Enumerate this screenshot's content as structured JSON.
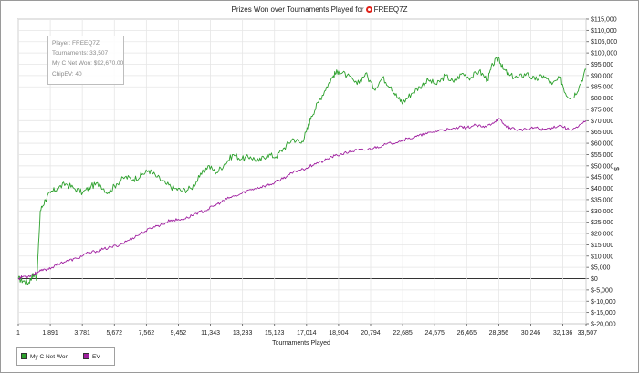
{
  "chart_data": {
    "type": "line",
    "title_prefix": "Prizes Won over Tournaments Played for",
    "player": "FREEQ7Z",
    "xlabel": "Tournaments Played",
    "ylabel": "$",
    "x_ticks": [
      "1",
      "1,891",
      "3,781",
      "5,672",
      "7,562",
      "9,452",
      "11,343",
      "13,233",
      "15,123",
      "17,014",
      "18,904",
      "20,794",
      "22,685",
      "24,575",
      "26,465",
      "28,356",
      "30,246",
      "32,136",
      "33,507"
    ],
    "x_tick_values": [
      1,
      1891,
      3781,
      5672,
      7562,
      9452,
      11343,
      13233,
      15123,
      17014,
      18904,
      20794,
      22685,
      24575,
      26465,
      28356,
      30246,
      32136,
      33507
    ],
    "xlim": [
      1,
      33507
    ],
    "y_ticks": [
      "$-20,000",
      "$-15,000",
      "$-10,000",
      "$-5,000",
      "$0",
      "$5,000",
      "$10,000",
      "$15,000",
      "$20,000",
      "$25,000",
      "$30,000",
      "$35,000",
      "$40,000",
      "$45,000",
      "$50,000",
      "$55,000",
      "$60,000",
      "$65,000",
      "$70,000",
      "$75,000",
      "$80,000",
      "$85,000",
      "$90,000",
      "$95,000",
      "$100,000",
      "$105,000",
      "$110,000",
      "$115,000"
    ],
    "y_tick_values": [
      -20000,
      -15000,
      -10000,
      -5000,
      0,
      5000,
      10000,
      15000,
      20000,
      25000,
      30000,
      35000,
      40000,
      45000,
      50000,
      55000,
      60000,
      65000,
      70000,
      75000,
      80000,
      85000,
      90000,
      95000,
      100000,
      105000,
      110000,
      115000
    ],
    "ylim": [
      -20000,
      115000
    ],
    "grid": true,
    "legend_position": "bottom-left",
    "infobox": {
      "player": "Player: FREEQ7Z",
      "tournaments": "Tournaments: 33,507",
      "net_won": "My C Net Won: $92,670.00",
      "chipev": "ChipEV: 40"
    },
    "series": [
      {
        "name": "My C Net Won",
        "color": "#2ca02c",
        "x": [
          1,
          300,
          600,
          800,
          1000,
          1100,
          1300,
          1600,
          1900,
          2300,
          2800,
          3300,
          3800,
          4300,
          4800,
          5300,
          5800,
          6300,
          6800,
          7300,
          7700,
          8200,
          8700,
          9200,
          9700,
          10200,
          10700,
          11200,
          11700,
          12200,
          12700,
          13200,
          13700,
          14200,
          14700,
          15200,
          15700,
          16200,
          16700,
          17000,
          17300,
          17700,
          18200,
          18600,
          18904,
          19400,
          20000,
          20500,
          21000,
          21500,
          22000,
          22400,
          22700,
          23200,
          23700,
          24200,
          24700,
          25200,
          25700,
          26200,
          26700,
          27200,
          27700,
          28000,
          28356,
          28600,
          29000,
          29500,
          30000,
          30500,
          31000,
          31500,
          32000,
          32300,
          32700,
          33100,
          33507
        ],
        "y": [
          0,
          -1000,
          -2000,
          1000,
          2000,
          0,
          30000,
          35000,
          38000,
          40000,
          42000,
          40000,
          38000,
          41000,
          42000,
          38000,
          42000,
          45000,
          44000,
          46000,
          48000,
          45000,
          42000,
          40000,
          39000,
          40000,
          45000,
          50000,
          47000,
          51000,
          55000,
          53000,
          54000,
          52000,
          55000,
          54000,
          58000,
          62000,
          60000,
          65000,
          72000,
          78000,
          85000,
          90000,
          92000,
          90000,
          86000,
          91000,
          84000,
          89000,
          85000,
          80000,
          78000,
          82000,
          85000,
          88000,
          86000,
          90000,
          87000,
          91000,
          89000,
          92000,
          88000,
          95000,
          98000,
          93000,
          90000,
          89000,
          91000,
          88000,
          90000,
          86000,
          89000,
          82000,
          80000,
          85000,
          92670
        ]
      },
      {
        "name": "EV",
        "color": "#a020a0",
        "x": [
          1,
          300,
          600,
          900,
          1200,
          1600,
          2000,
          2500,
          3000,
          3500,
          4000,
          4500,
          5000,
          5500,
          6000,
          6500,
          7000,
          7500,
          8000,
          8500,
          9000,
          9500,
          10000,
          10500,
          11000,
          11500,
          12000,
          12500,
          13000,
          13500,
          14000,
          14500,
          15000,
          15500,
          16000,
          16500,
          17000,
          17500,
          18000,
          18500,
          19000,
          19500,
          20000,
          20500,
          21000,
          21500,
          22000,
          22500,
          23000,
          23500,
          24000,
          24500,
          25000,
          25500,
          26000,
          26500,
          27000,
          27500,
          28000,
          28356,
          28700,
          29000,
          29500,
          30000,
          30500,
          31000,
          31500,
          32000,
          32500,
          33000,
          33507
        ],
        "y": [
          0,
          1000,
          1000,
          2000,
          3000,
          4000,
          5000,
          7000,
          8000,
          9000,
          11000,
          12000,
          13000,
          14000,
          15000,
          17000,
          19000,
          21000,
          23000,
          24000,
          26000,
          26000,
          27000,
          29000,
          30000,
          32000,
          34000,
          36000,
          37000,
          39000,
          40000,
          41000,
          42000,
          44000,
          46000,
          48000,
          49000,
          51000,
          52000,
          54000,
          55000,
          56000,
          57000,
          57000,
          58000,
          59000,
          60000,
          61000,
          62000,
          63000,
          64000,
          65000,
          66000,
          66000,
          67000,
          67000,
          68000,
          67000,
          69000,
          71000,
          68000,
          67000,
          66000,
          66000,
          67000,
          66000,
          67000,
          68000,
          66000,
          67000,
          70000
        ]
      }
    ]
  }
}
